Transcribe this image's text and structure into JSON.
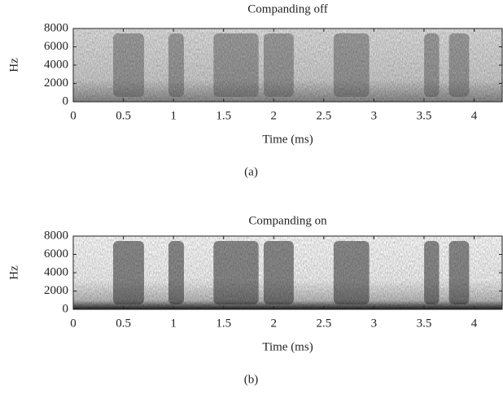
{
  "charts": [
    {
      "type": "spectrogram",
      "title": "Companding off",
      "xlabel": "Time (ms)",
      "ylabel": "Hz",
      "caption": "(a)",
      "xlim": [
        0,
        4.28
      ],
      "ylim": [
        0,
        8000
      ],
      "xticks": [
        0,
        0.5,
        1,
        1.5,
        2,
        2.5,
        3,
        3.5,
        4
      ],
      "yticks": [
        0,
        2000,
        4000,
        6000,
        8000
      ]
    },
    {
      "type": "spectrogram",
      "title": "Companding on",
      "xlabel": "Time (ms)",
      "ylabel": "Hz",
      "caption": "(b)",
      "xlim": [
        0,
        4.28
      ],
      "ylim": [
        0,
        8000
      ],
      "xticks": [
        0,
        0.5,
        1,
        1.5,
        2,
        2.5,
        3,
        3.5,
        4
      ],
      "yticks": [
        0,
        2000,
        4000,
        6000,
        8000
      ]
    }
  ]
}
